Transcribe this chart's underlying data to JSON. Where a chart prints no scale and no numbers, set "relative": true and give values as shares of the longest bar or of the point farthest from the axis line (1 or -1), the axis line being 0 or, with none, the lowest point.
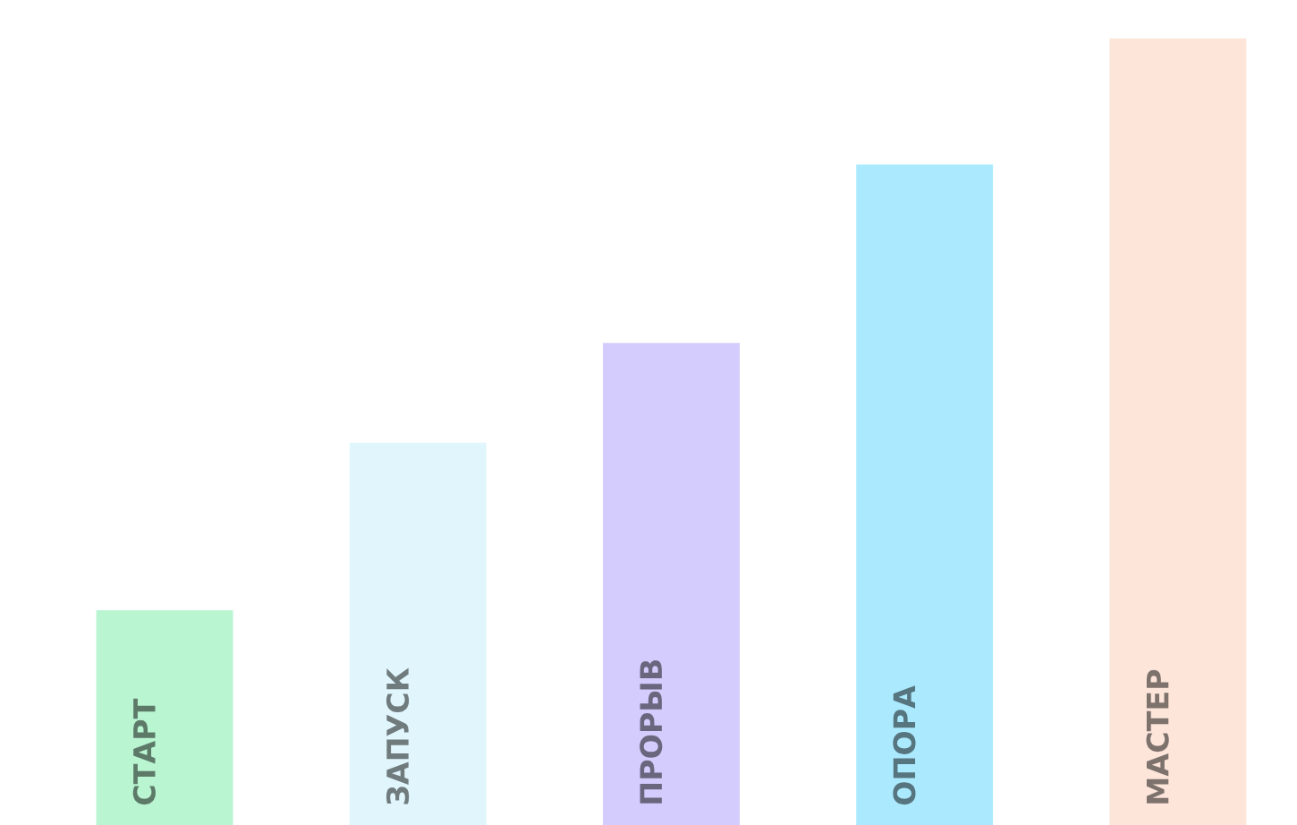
{
  "chart_data": {
    "type": "bar",
    "relative": true,
    "categories": [
      "СТАРТ",
      "ЗАПУСК",
      "ПРОРЫВ",
      "ОПОРА",
      "МАСТЕР"
    ],
    "values": [
      0.273,
      0.486,
      0.613,
      0.84,
      1
    ],
    "colors": [
      "#baf5d2",
      "#e0f6fc",
      "#d4ccfd",
      "#abeafe",
      "#fde5da"
    ],
    "legend": false
  }
}
